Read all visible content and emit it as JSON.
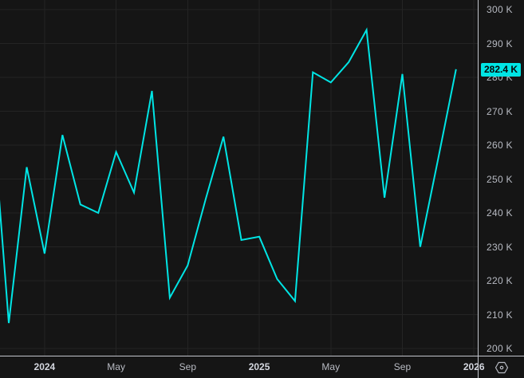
{
  "chart": {
    "background": "#151515",
    "grid_color": "#242424",
    "line_color": "#00E5E5",
    "separator_color": "#c2c5cc",
    "axis_text_color": "#b8bbc3",
    "year_text_color": "#d4d7df",
    "tag_text_color": "#060606"
  },
  "price_axis": {
    "ticks": [
      {
        "value": 300,
        "label": "300 K"
      },
      {
        "value": 290,
        "label": "290 K"
      },
      {
        "value": 280,
        "label": "280 K"
      },
      {
        "value": 270,
        "label": "270 K"
      },
      {
        "value": 260,
        "label": "260 K"
      },
      {
        "value": 250,
        "label": "250 K"
      },
      {
        "value": 240,
        "label": "240 K"
      },
      {
        "value": 230,
        "label": "230 K"
      },
      {
        "value": 220,
        "label": "220 K"
      },
      {
        "value": 210,
        "label": "210 K"
      },
      {
        "value": 200,
        "label": "200 K"
      }
    ],
    "last_price": {
      "value": 282.4,
      "label": "282.4 K"
    }
  },
  "time_axis": {
    "ticks": [
      {
        "label": "2024",
        "month_index": 3,
        "type": "year"
      },
      {
        "label": "May",
        "month_index": 7,
        "type": "month"
      },
      {
        "label": "Sep",
        "month_index": 11,
        "type": "month"
      },
      {
        "label": "2025",
        "month_index": 15,
        "type": "year"
      },
      {
        "label": "May",
        "month_index": 19,
        "type": "month"
      },
      {
        "label": "Sep",
        "month_index": 23,
        "type": "month"
      },
      {
        "label": "2026",
        "month_index": 27,
        "type": "year"
      }
    ]
  },
  "corner": {
    "icon": "hexagon-dot-icon"
  },
  "chart_data": {
    "type": "line",
    "unit": "K",
    "x": [
      "2023-10",
      "2023-11",
      "2023-12",
      "2024-01",
      "2024-02",
      "2024-03",
      "2024-04",
      "2024-05",
      "2024-06",
      "2024-07",
      "2024-08",
      "2024-09",
      "2024-10",
      "2024-11",
      "2024-12",
      "2025-01",
      "2025-02",
      "2025-03",
      "2025-04",
      "2025-05",
      "2025-06",
      "2025-07",
      "2025-08",
      "2025-09",
      "2025-10",
      "2025-11",
      "2025-12"
    ],
    "values": [
      275.5,
      207.5,
      253.5,
      228,
      263,
      242.5,
      240,
      258,
      246,
      276,
      215,
      224.5,
      244,
      262.5,
      232,
      233,
      220.5,
      214,
      281.5,
      278.5,
      284.5,
      294,
      244.5,
      281,
      230,
      256,
      282.4
    ],
    "last_value_label": "282.4 K",
    "title": "",
    "xlabel": "",
    "ylabel": "",
    "ylim": [
      198,
      303
    ],
    "grid": true,
    "legend": false,
    "note_first_point_clipped_at_left_edge": true
  }
}
